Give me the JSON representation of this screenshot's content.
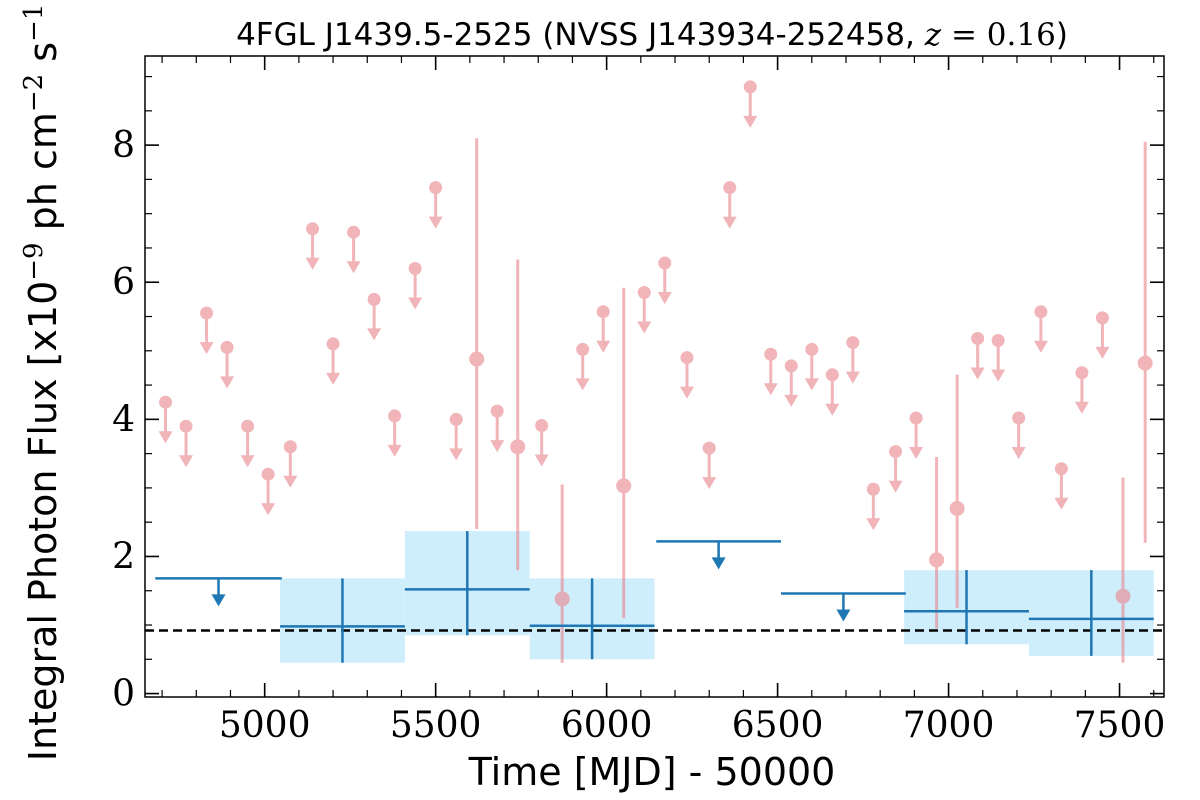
{
  "chart_data": {
    "type": "scatter",
    "title": "4FGL J1439.5-2525 (NVSS J143934-252458, z = 0.16)",
    "title_parts": {
      "prefix": "4FGL J1439.5-2525 (NVSS J143934-252458, ",
      "z_symbol": "z",
      "z_value": " = 0.16",
      "suffix": ")"
    },
    "xlabel": "Time [MJD] - 50000",
    "ylabel": "Integral Photon Flux [x10⁻⁹ ph cm⁻² s⁻¹]",
    "ylabel_parts": {
      "pre": "Integral Photon Flux [x10",
      "exp1": "−9",
      "mid": " ph cm",
      "exp2": "−2",
      "mid2": " s",
      "exp3": "−1",
      "post": "]"
    },
    "xlim": [
      4650,
      7630
    ],
    "ylim": [
      -0.05,
      9.3
    ],
    "xticks": [
      5000,
      5500,
      6000,
      6500,
      7000,
      7500
    ],
    "yticks": [
      0,
      2,
      4,
      6,
      8
    ],
    "grid": false,
    "reference_line": {
      "y": 0.92,
      "style": "dashed",
      "color": "#000000"
    },
    "colors": {
      "short_bins": "#e8838a",
      "long_bins": "#1f77b4",
      "long_bins_band": "#cfeefc",
      "reference_line": "#000000"
    },
    "series": [
      {
        "kind": "short_bin_upper_limits",
        "color": "#e8838a",
        "points": [
          [
            4710,
            4.25
          ],
          [
            4770,
            3.9
          ],
          [
            4830,
            5.55
          ],
          [
            4890,
            5.05
          ],
          [
            4950,
            3.9
          ],
          [
            5010,
            3.2
          ],
          [
            5075,
            3.6
          ],
          [
            5140,
            6.78
          ],
          [
            5200,
            5.1
          ],
          [
            5260,
            6.73
          ],
          [
            5320,
            5.75
          ],
          [
            5380,
            4.05
          ],
          [
            5440,
            6.2
          ],
          [
            5500,
            7.38
          ],
          [
            5560,
            4.0
          ],
          [
            5680,
            4.12
          ],
          [
            5810,
            3.91
          ],
          [
            5930,
            5.02
          ],
          [
            5990,
            5.57
          ],
          [
            6110,
            5.85
          ],
          [
            6170,
            6.28
          ],
          [
            6235,
            4.9
          ],
          [
            6300,
            3.58
          ],
          [
            6360,
            7.38
          ],
          [
            6420,
            8.85
          ],
          [
            6480,
            4.95
          ],
          [
            6540,
            4.78
          ],
          [
            6600,
            5.02
          ],
          [
            6660,
            4.65
          ],
          [
            6720,
            5.12
          ],
          [
            6780,
            2.98
          ],
          [
            6845,
            3.53
          ],
          [
            6905,
            4.02
          ],
          [
            7085,
            5.18
          ],
          [
            7145,
            5.15
          ],
          [
            7205,
            4.02
          ],
          [
            7270,
            5.57
          ],
          [
            7330,
            3.28
          ],
          [
            7390,
            4.68
          ],
          [
            7450,
            5.48
          ]
        ]
      },
      {
        "kind": "short_bin_detections",
        "color": "#e8838a",
        "points": [
          {
            "x": 5620,
            "y": 4.88,
            "ylo": 2.4,
            "yhi": 8.1
          },
          {
            "x": 5740,
            "y": 3.6,
            "ylo": 1.8,
            "yhi": 6.33
          },
          {
            "x": 5870,
            "y": 1.38,
            "ylo": 0.45,
            "yhi": 3.05
          },
          {
            "x": 6050,
            "y": 3.03,
            "ylo": 1.1,
            "yhi": 5.92
          },
          {
            "x": 6965,
            "y": 1.95,
            "ylo": 0.95,
            "yhi": 3.45
          },
          {
            "x": 7025,
            "y": 2.7,
            "ylo": 1.25,
            "yhi": 4.65
          },
          {
            "x": 7510,
            "y": 1.42,
            "ylo": 0.45,
            "yhi": 3.15
          },
          {
            "x": 7575,
            "y": 4.82,
            "ylo": 2.2,
            "yhi": 8.05
          }
        ]
      },
      {
        "kind": "long_bin_upper_limits",
        "color": "#1f77b4",
        "points": [
          {
            "x0": 4680,
            "x1": 5050,
            "y": 1.68
          },
          {
            "x0": 6145,
            "x1": 6510,
            "y": 2.22
          },
          {
            "x0": 6510,
            "x1": 6875,
            "y": 1.46
          }
        ]
      },
      {
        "kind": "long_bin_detections",
        "color": "#1f77b4",
        "points": [
          {
            "x0": 5045,
            "x1": 5410,
            "y": 0.98,
            "ylo": 0.45,
            "yhi": 1.68
          },
          {
            "x0": 5410,
            "x1": 5775,
            "y": 1.52,
            "ylo": 0.85,
            "yhi": 2.37
          },
          {
            "x0": 5775,
            "x1": 6140,
            "y": 0.99,
            "ylo": 0.5,
            "yhi": 1.68
          },
          {
            "x0": 6870,
            "x1": 7235,
            "y": 1.2,
            "ylo": 0.72,
            "yhi": 1.8
          },
          {
            "x0": 7235,
            "x1": 7600,
            "y": 1.09,
            "ylo": 0.55,
            "yhi": 1.8
          }
        ]
      }
    ]
  }
}
